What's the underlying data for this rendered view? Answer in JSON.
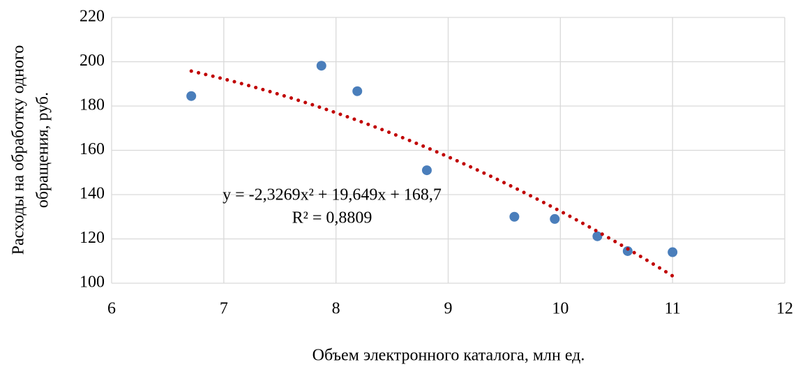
{
  "chart_data": {
    "type": "scatter",
    "x_label": "Объем электронного каталога, млн ед.",
    "y_label": [
      "Расходы на обработку одного",
      "обращения, руб."
    ],
    "series": [
      {
        "color": "#4a7ebb",
        "x": [
          6.71,
          7.87,
          8.19,
          8.81,
          9.59,
          9.95,
          10.33,
          10.6,
          11.0
        ],
        "values": [
          184.5,
          198.2,
          186.7,
          151.0,
          130.0,
          129.0,
          121.2,
          114.5,
          114.0
        ]
      }
    ],
    "trendline": {
      "type": "polynomial",
      "color": "#c00000",
      "coefficients": [
        -2.3269,
        19.649,
        168.7
      ],
      "equation": "y = -2,3269x² + 19,649x + 168,7",
      "r2": "R² = 0,8809"
    },
    "xlim": [
      6,
      12
    ],
    "xticks": [
      6,
      7,
      8,
      9,
      10,
      11,
      12
    ],
    "ylim": [
      100,
      220
    ],
    "yticks": [
      100,
      120,
      140,
      160,
      180,
      200,
      220
    ],
    "grid": true
  }
}
